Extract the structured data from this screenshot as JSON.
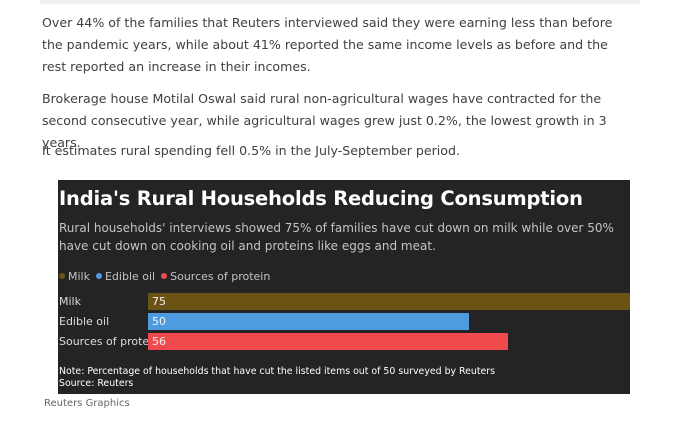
{
  "article": {
    "paragraphs": [
      "Over 44% of the families that Reuters interviewed said they were earning less than before the pandemic years, while about 41% reported the same income levels as before and the rest reported an increase in their incomes.",
      "Brokerage house Motilal Oswal said rural non-agricultural wages have contracted for the second consecutive year, while agricultural wages grew just 0.2%, the lowest growth in 3 years.",
      "It estimates rural spending fell 0.5% in the July-September period."
    ]
  },
  "chart_data": {
    "type": "bar",
    "orientation": "horizontal",
    "title": "India's Rural Households Reducing Consumption",
    "subtitle": "Rural households' interviews showed 75% of families have cut down on milk while over 50% have cut down on cooking oil and proteins like eggs and meat.",
    "categories": [
      "Milk",
      "Edible oil",
      "Sources of protein"
    ],
    "values": [
      75,
      50,
      56
    ],
    "data_labels": [
      "75",
      "50",
      "56"
    ],
    "colors": [
      "#6b5315",
      "#4e9be0",
      "#f04a4e"
    ],
    "legend": [
      {
        "label": "Milk",
        "color": "#6b5315"
      },
      {
        "label": "Edible oil",
        "color": "#4e9be0"
      },
      {
        "label": "Sources of protein",
        "color": "#f04a4e"
      }
    ],
    "legend_position": "top-left",
    "xlim": [
      0,
      75
    ],
    "grid": false,
    "note": "Note: Percentage of households that have cut the listed items out of 50 surveyed by Reuters",
    "source": "Source: Reuters",
    "background": "#242424"
  },
  "credit": "Reuters Graphics"
}
